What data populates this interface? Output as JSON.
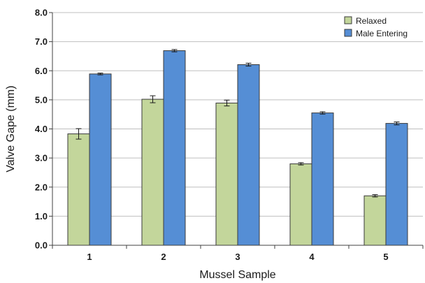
{
  "chart_data": {
    "type": "bar",
    "title": "",
    "xlabel": "Mussel Sample",
    "ylabel": "Valve Gape (mm)",
    "categories": [
      "1",
      "2",
      "3",
      "4",
      "5"
    ],
    "ylim": [
      0,
      8
    ],
    "yticks": [
      "0.0",
      "1.0",
      "2.0",
      "3.0",
      "4.0",
      "5.0",
      "6.0",
      "7.0",
      "8.0"
    ],
    "grid": true,
    "legend_position": "top-right",
    "series": [
      {
        "name": "Relaxed",
        "color": "#c3d69b",
        "values": [
          3.83,
          5.02,
          4.89,
          2.8,
          1.7
        ],
        "errors": [
          0.18,
          0.12,
          0.1,
          0.04,
          0.04
        ]
      },
      {
        "name": "Male Entering",
        "color": "#558ed5",
        "values": [
          5.89,
          6.69,
          6.21,
          4.55,
          4.19
        ],
        "errors": [
          0.03,
          0.04,
          0.05,
          0.04,
          0.05
        ]
      }
    ]
  }
}
